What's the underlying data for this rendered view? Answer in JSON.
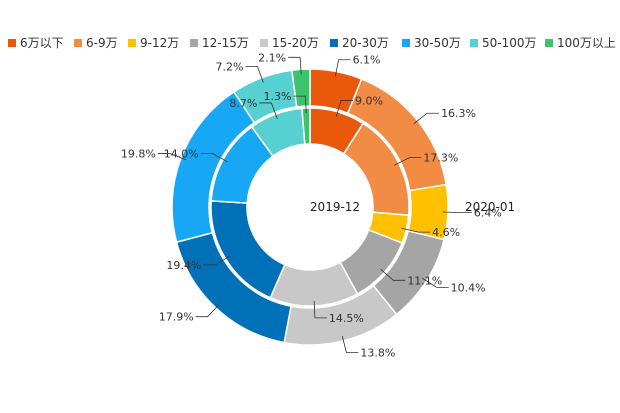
{
  "chart_data": {
    "type": "pie",
    "subtype": "nested-donut",
    "categories": [
      "6万以下",
      "6-9万",
      "9-12万",
      "12-15万",
      "15-20万",
      "20-30万",
      "30-50万",
      "50-100万",
      "100万以上"
    ],
    "colors": [
      "#e8590c",
      "#f28c45",
      "#ffc000",
      "#a5a5a5",
      "#c8c8c8",
      "#0070b8",
      "#18a7f5",
      "#56d0d0",
      "#3cc36b"
    ],
    "series": [
      {
        "name": "2019-12",
        "ring": "inner",
        "values": [
          9.0,
          17.3,
          4.6,
          11.1,
          14.5,
          19.4,
          14.0,
          8.7,
          1.3
        ],
        "labels": [
          "9.0%",
          "17.3%",
          "4.6%",
          "11.1%",
          "14.5%",
          "19.4%",
          "14.0%",
          "8.7%",
          "1.3%"
        ]
      },
      {
        "name": "2020-01",
        "ring": "outer",
        "values": [
          6.1,
          16.3,
          6.4,
          10.4,
          13.8,
          17.9,
          19.8,
          7.2,
          2.1
        ],
        "labels": [
          "6.1%",
          "16.3%",
          "6.4%",
          "10.4%",
          "13.8%",
          "17.9%",
          "19.8%",
          "7.2%",
          "2.1%"
        ]
      }
    ],
    "legend_position": "top"
  }
}
